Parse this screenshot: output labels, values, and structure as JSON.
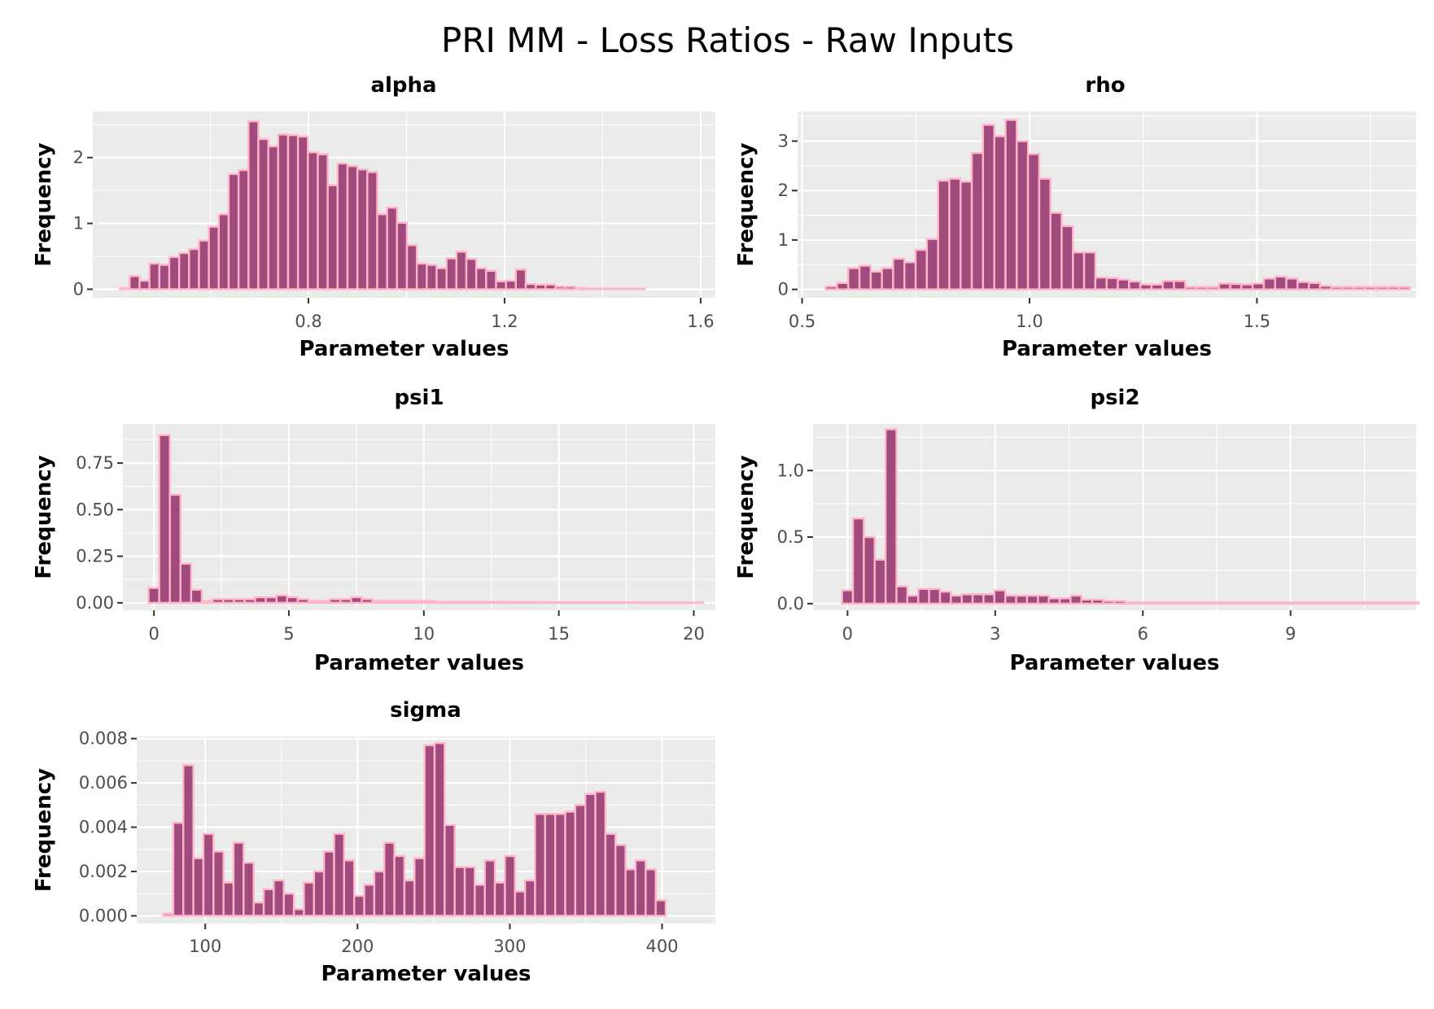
{
  "title": "PRI MM - Loss Ratios - Raw Inputs",
  "colors": {
    "bar_fill": "#a04a7e",
    "bar_outline": "#ffb6c9",
    "panel_bg": "#ebebeb",
    "grid": "#ffffff"
  },
  "chart_data": [
    {
      "type": "bar",
      "title": "alpha",
      "xlabel": "Parameter values",
      "ylabel": "Frequency",
      "xlim": [
        0.36,
        1.63
      ],
      "ylim": [
        -0.13,
        2.7
      ],
      "x_ticks": [
        {
          "value": 0.8,
          "label": "0.8"
        },
        {
          "value": 1.2,
          "label": "1.2"
        },
        {
          "value": 1.6,
          "label": "1.6"
        }
      ],
      "y_ticks": [
        {
          "value": 0,
          "label": "0"
        },
        {
          "value": 1,
          "label": "1"
        },
        {
          "value": 2,
          "label": "2"
        }
      ],
      "grid": true,
      "bin_start": 0.415,
      "bin_width": 0.0202,
      "values": [
        0.02,
        0.2,
        0.13,
        0.39,
        0.37,
        0.49,
        0.55,
        0.61,
        0.74,
        0.95,
        1.14,
        1.75,
        1.81,
        2.55,
        2.28,
        2.17,
        2.35,
        2.34,
        2.32,
        2.08,
        2.05,
        1.58,
        1.91,
        1.87,
        1.82,
        1.78,
        1.14,
        1.24,
        1.01,
        0.67,
        0.39,
        0.37,
        0.32,
        0.47,
        0.57,
        0.46,
        0.32,
        0.28,
        0.12,
        0.13,
        0.3,
        0.08,
        0.07,
        0.07,
        0.04,
        0.04,
        0.02,
        0.01,
        0.01,
        0.01,
        0.01,
        0.01,
        0.01
      ]
    },
    {
      "type": "bar",
      "title": "rho",
      "xlabel": "Parameter values",
      "ylabel": "Frequency",
      "xlim": [
        0.49,
        1.85
      ],
      "ylim": [
        -0.17,
        3.6
      ],
      "x_ticks": [
        {
          "value": 0.5,
          "label": "0.5"
        },
        {
          "value": 1.0,
          "label": "1.0"
        },
        {
          "value": 1.5,
          "label": "1.5"
        }
      ],
      "y_ticks": [
        {
          "value": 0,
          "label": "0"
        },
        {
          "value": 1,
          "label": "1"
        },
        {
          "value": 2,
          "label": "2"
        },
        {
          "value": 3,
          "label": "3"
        }
      ],
      "grid": true,
      "bin_start": 0.552,
      "bin_width": 0.0247,
      "values": [
        0.06,
        0.13,
        0.43,
        0.48,
        0.36,
        0.43,
        0.62,
        0.55,
        0.8,
        1.02,
        2.2,
        2.24,
        2.18,
        2.76,
        3.33,
        3.1,
        3.43,
        3.0,
        2.74,
        2.24,
        1.55,
        1.28,
        0.75,
        0.75,
        0.24,
        0.23,
        0.2,
        0.16,
        0.1,
        0.1,
        0.17,
        0.17,
        0.05,
        0.05,
        0.05,
        0.12,
        0.11,
        0.1,
        0.12,
        0.22,
        0.26,
        0.22,
        0.15,
        0.13,
        0.07,
        0.05,
        0.05,
        0.05,
        0.05,
        0.05,
        0.05,
        0.05
      ]
    },
    {
      "type": "bar",
      "title": "psi1",
      "xlabel": "Parameter values",
      "ylabel": "Frequency",
      "xlim": [
        -1.15,
        20.8
      ],
      "ylim": [
        -0.04,
        0.96
      ],
      "x_ticks": [
        {
          "value": 0,
          "label": "0"
        },
        {
          "value": 5,
          "label": "5"
        },
        {
          "value": 10,
          "label": "10"
        },
        {
          "value": 15,
          "label": "15"
        },
        {
          "value": 20,
          "label": "20"
        }
      ],
      "y_ticks": [
        {
          "value": 0,
          "label": "0.00"
        },
        {
          "value": 0.25,
          "label": "0.25"
        },
        {
          "value": 0.5,
          "label": "0.50"
        },
        {
          "value": 0.75,
          "label": "0.75"
        }
      ],
      "grid": true,
      "bin_start": -0.2,
      "bin_width": 0.395,
      "values": [
        0.08,
        0.9,
        0.58,
        0.21,
        0.07,
        0.01,
        0.02,
        0.02,
        0.02,
        0.02,
        0.03,
        0.03,
        0.04,
        0.03,
        0.02,
        0.01,
        0.01,
        0.02,
        0.02,
        0.03,
        0.02,
        0.01,
        0.01,
        0.01,
        0.01,
        0.01,
        0.01,
        0.005,
        0.005,
        0.005,
        0.005,
        0.005,
        0.005,
        0.005,
        0.004,
        0.004,
        0.004,
        0.003,
        0.003,
        0.003,
        0.003,
        0.003,
        0.003,
        0.003,
        0.003,
        0.003,
        0.002,
        0.002,
        0.002,
        0.002,
        0.002,
        0.002
      ]
    },
    {
      "type": "bar",
      "title": "psi2",
      "xlabel": "Parameter values",
      "ylabel": "Frequency",
      "xlim": [
        -0.7,
        11.55
      ],
      "ylim": [
        -0.05,
        1.35
      ],
      "x_ticks": [
        {
          "value": 0,
          "label": "0"
        },
        {
          "value": 3,
          "label": "3"
        },
        {
          "value": 6,
          "label": "6"
        },
        {
          "value": 9,
          "label": "9"
        }
      ],
      "y_ticks": [
        {
          "value": 0,
          "label": "0.0"
        },
        {
          "value": 0.5,
          "label": "0.5"
        },
        {
          "value": 1.0,
          "label": "1.0"
        }
      ],
      "grid": true,
      "bin_start": -0.11,
      "bin_width": 0.221,
      "values": [
        0.1,
        0.64,
        0.5,
        0.33,
        1.31,
        0.13,
        0.06,
        0.11,
        0.11,
        0.09,
        0.06,
        0.07,
        0.07,
        0.07,
        0.1,
        0.06,
        0.06,
        0.06,
        0.06,
        0.04,
        0.04,
        0.06,
        0.03,
        0.03,
        0.02,
        0.02,
        0.01,
        0.01,
        0.01,
        0.01,
        0.01,
        0.01,
        0.01,
        0.01,
        0.01,
        0.01,
        0.01,
        0.01,
        0.01,
        0.01,
        0.01,
        0.01,
        0.01,
        0.01,
        0.01,
        0.01,
        0.01,
        0.01,
        0.01,
        0.01,
        0.01,
        0.01,
        0.01
      ]
    },
    {
      "type": "bar",
      "title": "sigma",
      "xlabel": "Parameter values",
      "ylabel": "Frequency",
      "xlim": [
        55,
        435
      ],
      "ylim": [
        -0.00035,
        0.0081
      ],
      "x_ticks": [
        {
          "value": 100,
          "label": "100"
        },
        {
          "value": 200,
          "label": "200"
        },
        {
          "value": 300,
          "label": "300"
        },
        {
          "value": 400,
          "label": "400"
        }
      ],
      "y_ticks": [
        {
          "value": 0,
          "label": "0.000"
        },
        {
          "value": 0.002,
          "label": "0.002"
        },
        {
          "value": 0.004,
          "label": "0.004"
        },
        {
          "value": 0.006,
          "label": "0.006"
        },
        {
          "value": 0.008,
          "label": "0.008"
        }
      ],
      "grid": true,
      "bin_start": 72.4,
      "bin_width": 6.6,
      "values": [
        0.0001,
        0.0042,
        0.0068,
        0.0026,
        0.0037,
        0.0029,
        0.0015,
        0.0033,
        0.0024,
        0.0006,
        0.0012,
        0.0016,
        0.001,
        0.0003,
        0.0015,
        0.002,
        0.0029,
        0.0037,
        0.0025,
        0.0009,
        0.0014,
        0.002,
        0.0033,
        0.0027,
        0.0016,
        0.0026,
        0.0077,
        0.0078,
        0.0041,
        0.0022,
        0.0022,
        0.0014,
        0.0025,
        0.0015,
        0.0027,
        0.0011,
        0.0016,
        0.0046,
        0.0046,
        0.0046,
        0.0047,
        0.005,
        0.0055,
        0.0056,
        0.0037,
        0.0032,
        0.0021,
        0.0025,
        0.0021,
        0.0007
      ]
    }
  ]
}
